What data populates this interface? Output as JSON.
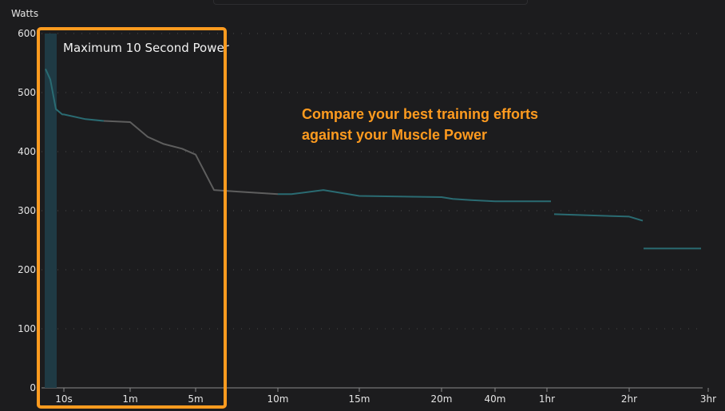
{
  "chart_data": {
    "type": "line",
    "ylabel": "Watts",
    "ylim": [
      0,
      600
    ],
    "y_ticks": [
      "0",
      "100",
      "200",
      "300",
      "400",
      "500",
      "600"
    ],
    "grid": "horizontal dotted",
    "x_tick_labels": [
      "10s",
      "1m",
      "5m",
      "10m",
      "15m",
      "20m",
      "40m",
      "1hr",
      "2hr",
      "3hr"
    ],
    "series": [
      {
        "x": [
          "1s",
          "2s",
          "3s",
          "5s",
          "10s",
          "15s",
          "30s",
          "1m",
          "2m",
          "3m",
          "4m",
          "5m",
          "6m",
          "8m",
          "10m",
          "12m",
          "14m",
          "15m",
          "20m",
          "22m",
          "25m",
          "40m",
          "1hr",
          "1hr",
          "2hr",
          "2hr",
          "3hr"
        ],
        "y": [
          540,
          522,
          472,
          463,
          463,
          455,
          452,
          450,
          425,
          413,
          405,
          395,
          335,
          332,
          328,
          328,
          335,
          325,
          323,
          320,
          318,
          316,
          316,
          294,
          290,
          283,
          236
        ]
      }
    ],
    "colors": {
      "highlighted": "#2a6b72",
      "other": "#5e5e5e",
      "highlight_band": "#1f3a44",
      "annotation": "#ff9b1f"
    }
  },
  "highlight": {
    "label": "Maximum 10 Second Power"
  },
  "annotation": {
    "lines": [
      "Compare your best training efforts",
      "against your Muscle Power"
    ]
  }
}
